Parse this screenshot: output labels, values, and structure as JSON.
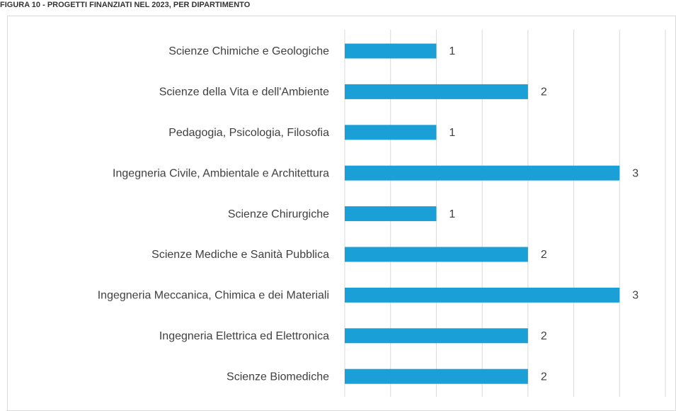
{
  "chart_data": {
    "type": "hbar",
    "title": "FIGURA 10 - PROGETTI FINANZIATI NEL 2023, PER DIPARTIMENTO",
    "categories": [
      "Scienze Chimiche e Geologiche",
      "Scienze della Vita e dell'Ambiente",
      "Pedagogia, Psicologia, Filosofia",
      "Ingegneria Civile, Ambientale e Architettura",
      "Scienze Chirurgiche",
      "Scienze Mediche e Sanità Pubblica",
      "Ingegneria Meccanica, Chimica e dei Materiali",
      "Ingegneria Elettrica ed Elettronica",
      "Scienze Biomediche"
    ],
    "values": [
      1,
      2,
      1,
      3,
      1,
      2,
      3,
      2,
      2
    ],
    "color": "#1a9fd6",
    "xlim": [
      0,
      3.5
    ],
    "xticks": [
      0,
      0.5,
      1,
      1.5,
      2,
      2.5,
      3,
      3.5
    ],
    "grid": true
  }
}
